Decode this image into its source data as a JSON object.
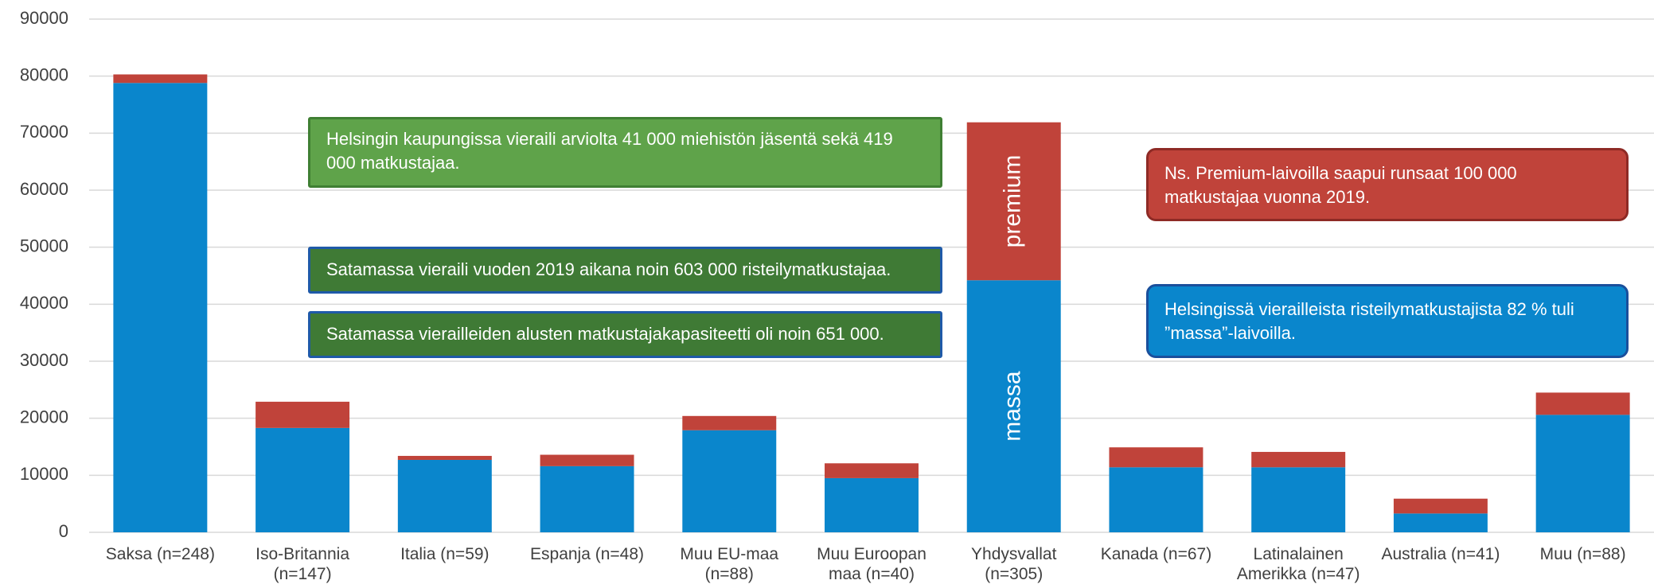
{
  "chart_data": {
    "type": "stacked_bar",
    "categories": [
      "Saksa (n=248)",
      "Iso-Britannia (n=147)",
      "Italia (n=59)",
      "Espanja (n=48)",
      "Muu EU-maa (n=88)",
      "Muu Euroopan maa (n=40)",
      "Yhdysvallat (n=305)",
      "Kanada (n=67)",
      "Latinalainen Amerikka (n=47)",
      "Australia (n=41)",
      "Muu (n=88)"
    ],
    "series": [
      {
        "name": "massa",
        "color": "#0a86cc",
        "values": [
          78800,
          18300,
          12700,
          11600,
          17900,
          9500,
          44200,
          11400,
          11400,
          3300,
          20600
        ]
      },
      {
        "name": "premium",
        "color": "#c0433a",
        "values": [
          1500,
          4600,
          700,
          2000,
          2500,
          2600,
          27700,
          3500,
          2700,
          2600,
          3900
        ]
      }
    ],
    "ylim": [
      0,
      90000
    ],
    "yticks": [
      0,
      10000,
      20000,
      30000,
      40000,
      50000,
      60000,
      70000,
      80000,
      90000
    ],
    "grid": true,
    "annotations": [
      "Helsingin kaupungissa vieraili arviolta  41 000 miehistön jäsentä sekä 419 000 matkustajaa.",
      "Satamassa vieraili vuoden 2019 aikana noin 603 000 risteilymatkustajaa.",
      "Satamassa vierailleiden alusten matkustajakapasiteetti oli noin 651 000.",
      "Ns. Premium-laivoilla saapui runsaat 100 000 matkustajaa vuonna 2019.",
      "Helsingissä vierailleista  risteilymatkustajista 82 % tuli ”massa”-laivoilla."
    ]
  }
}
